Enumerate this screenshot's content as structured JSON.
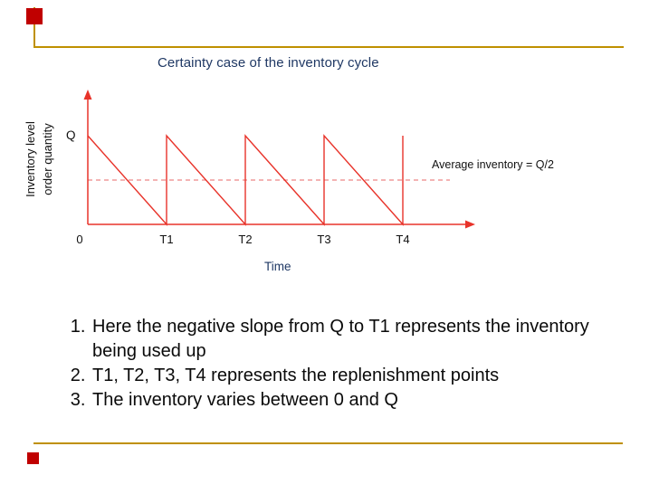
{
  "slide": {
    "title": "Certainty case of the inventory cycle",
    "colors": {
      "accent_square": "#c00000",
      "frame_gold": "#bf9000",
      "chart_red": "#e8332a",
      "average_line_pink": "#ee8886",
      "title_navy": "#1f3864"
    }
  },
  "chart_data": {
    "type": "line",
    "title": "Certainty case of the inventory cycle",
    "xlabel": "Time",
    "ylabel": "Inventory level order quantity",
    "ylabel_lines": [
      "Inventory  level",
      "order quantity"
    ],
    "x_ticks": [
      "0",
      "T1",
      "T2",
      "T3",
      "T4"
    ],
    "y_max_label": "Q",
    "series": [
      {
        "name": "inventory sawtooth cycle",
        "points": [
          [
            0,
            1
          ],
          [
            1,
            0
          ],
          [
            1,
            1
          ],
          [
            2,
            0
          ],
          [
            2,
            1
          ],
          [
            3,
            0
          ],
          [
            3,
            1
          ],
          [
            4,
            0
          ],
          [
            4,
            1
          ]
        ]
      }
    ],
    "average_line": {
      "label": "Average inventory = Q/2",
      "value": 0.5
    },
    "x_range": [
      0,
      4.8
    ],
    "y_range": [
      0,
      1.5
    ],
    "grid": false,
    "legend": false
  },
  "notes": {
    "items": [
      "Here the negative slope from Q to T1 represents the inventory being used up",
      "T1, T2, T3, T4 represents the replenishment points",
      "The inventory varies between 0 and Q"
    ]
  }
}
